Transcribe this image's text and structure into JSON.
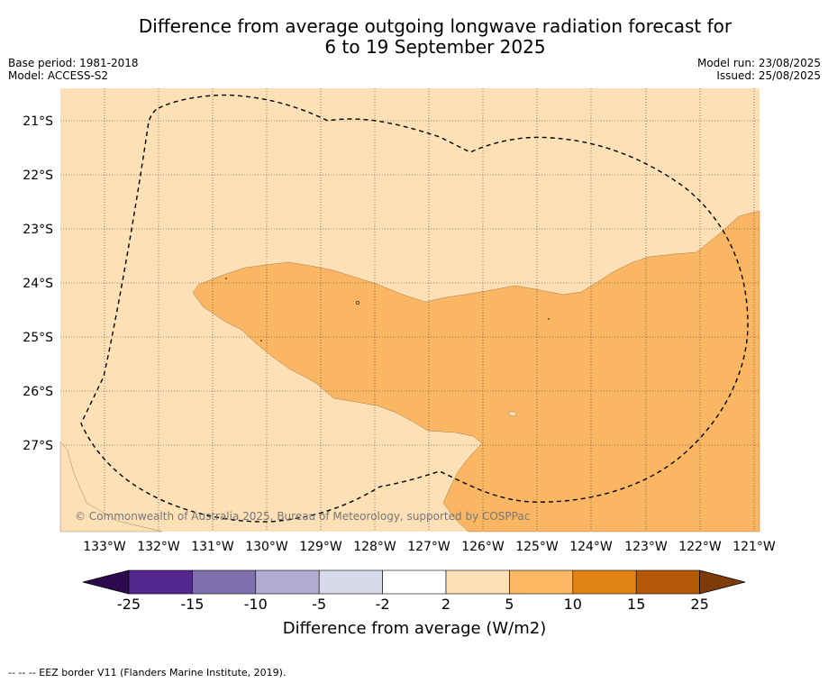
{
  "title_line1": "Difference from average outgoing longwave radiation forecast for",
  "title_line2": "6 to 19 September 2025",
  "base_period": "Base period: 1981-2018",
  "model": "Model: ACCESS-S2",
  "model_run": "Model run: 23/08/2025",
  "issued": "Issued: 25/08/2025",
  "lat_labels": [
    "21°S",
    "22°S",
    "23°S",
    "24°S",
    "25°S",
    "26°S",
    "27°S"
  ],
  "lon_labels": [
    "133°W",
    "132°W",
    "131°W",
    "130°W",
    "129°W",
    "128°W",
    "127°W",
    "126°W",
    "125°W",
    "124°W",
    "123°W",
    "122°W",
    "121°W"
  ],
  "copyright": "© Commonwealth of Australia 2025, Bureau of Meteorology, supported by COSPPac",
  "colorbar": {
    "label": "Difference from average (W/m2)",
    "ticks": [
      "-25",
      "-15",
      "-10",
      "-5",
      "-2",
      "2",
      "5",
      "10",
      "15",
      "25"
    ],
    "colors": [
      "#2d0a4e",
      "#54278f",
      "#7e70ad",
      "#b2abd2",
      "#d8daeb",
      "#ffffff",
      "#fee0b6",
      "#fdb863",
      "#e08214",
      "#b35806",
      "#7f3b08"
    ]
  },
  "map_colors": {
    "light": "#fde0b6",
    "mid": "#fbb663"
  },
  "footnote": "--  --  -- EEZ border V11 (Flanders Marine Institute, 2019)."
}
